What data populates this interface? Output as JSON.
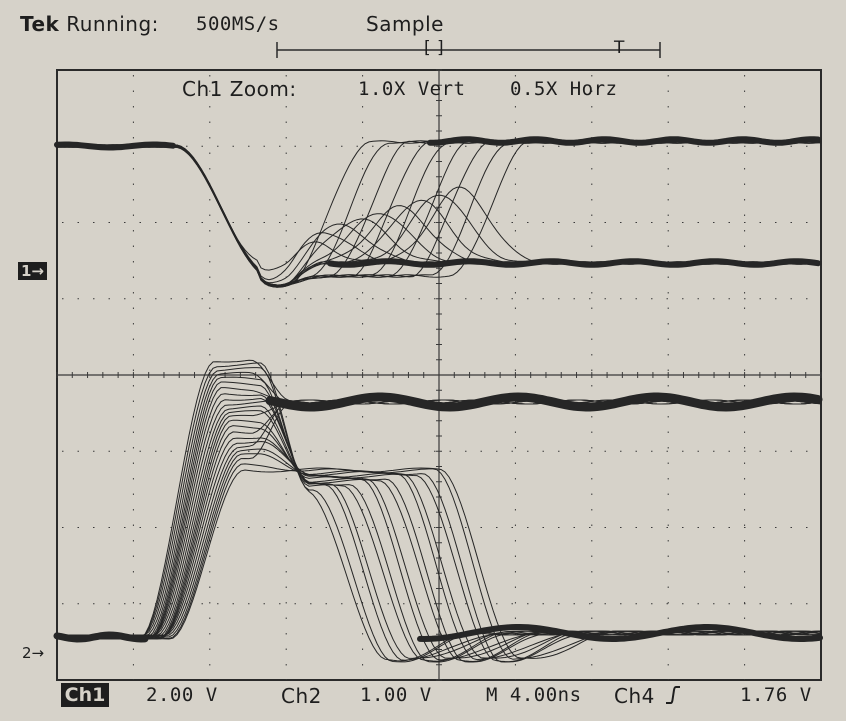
{
  "header": {
    "brand": "Tek",
    "status": "Running:",
    "rate": "500MS/s",
    "mode": "Sample"
  },
  "zoom": {
    "channel": "Ch1 Zoom:",
    "vert": "1.0X Vert",
    "horz": "0.5X Horz"
  },
  "trigger_bar": {
    "window_marker": "[ ]",
    "trigger_marker": "T"
  },
  "markers": {
    "ch1": "1→",
    "ch2": "2→"
  },
  "readout": {
    "ch1_label": "Ch1",
    "ch1_scale": "2.00 V",
    "ch2_label": "Ch2",
    "ch2_scale": "1.00 V",
    "timebase": "M 4.00ns",
    "trigger_source": "Ch4",
    "trigger_slope_icon": "rising-edge-icon",
    "trigger_level": "1.76 V"
  },
  "colors": {
    "screen_bg": "#d6d2c9",
    "trace": "#262626",
    "grid": "#3a3a3a"
  }
}
